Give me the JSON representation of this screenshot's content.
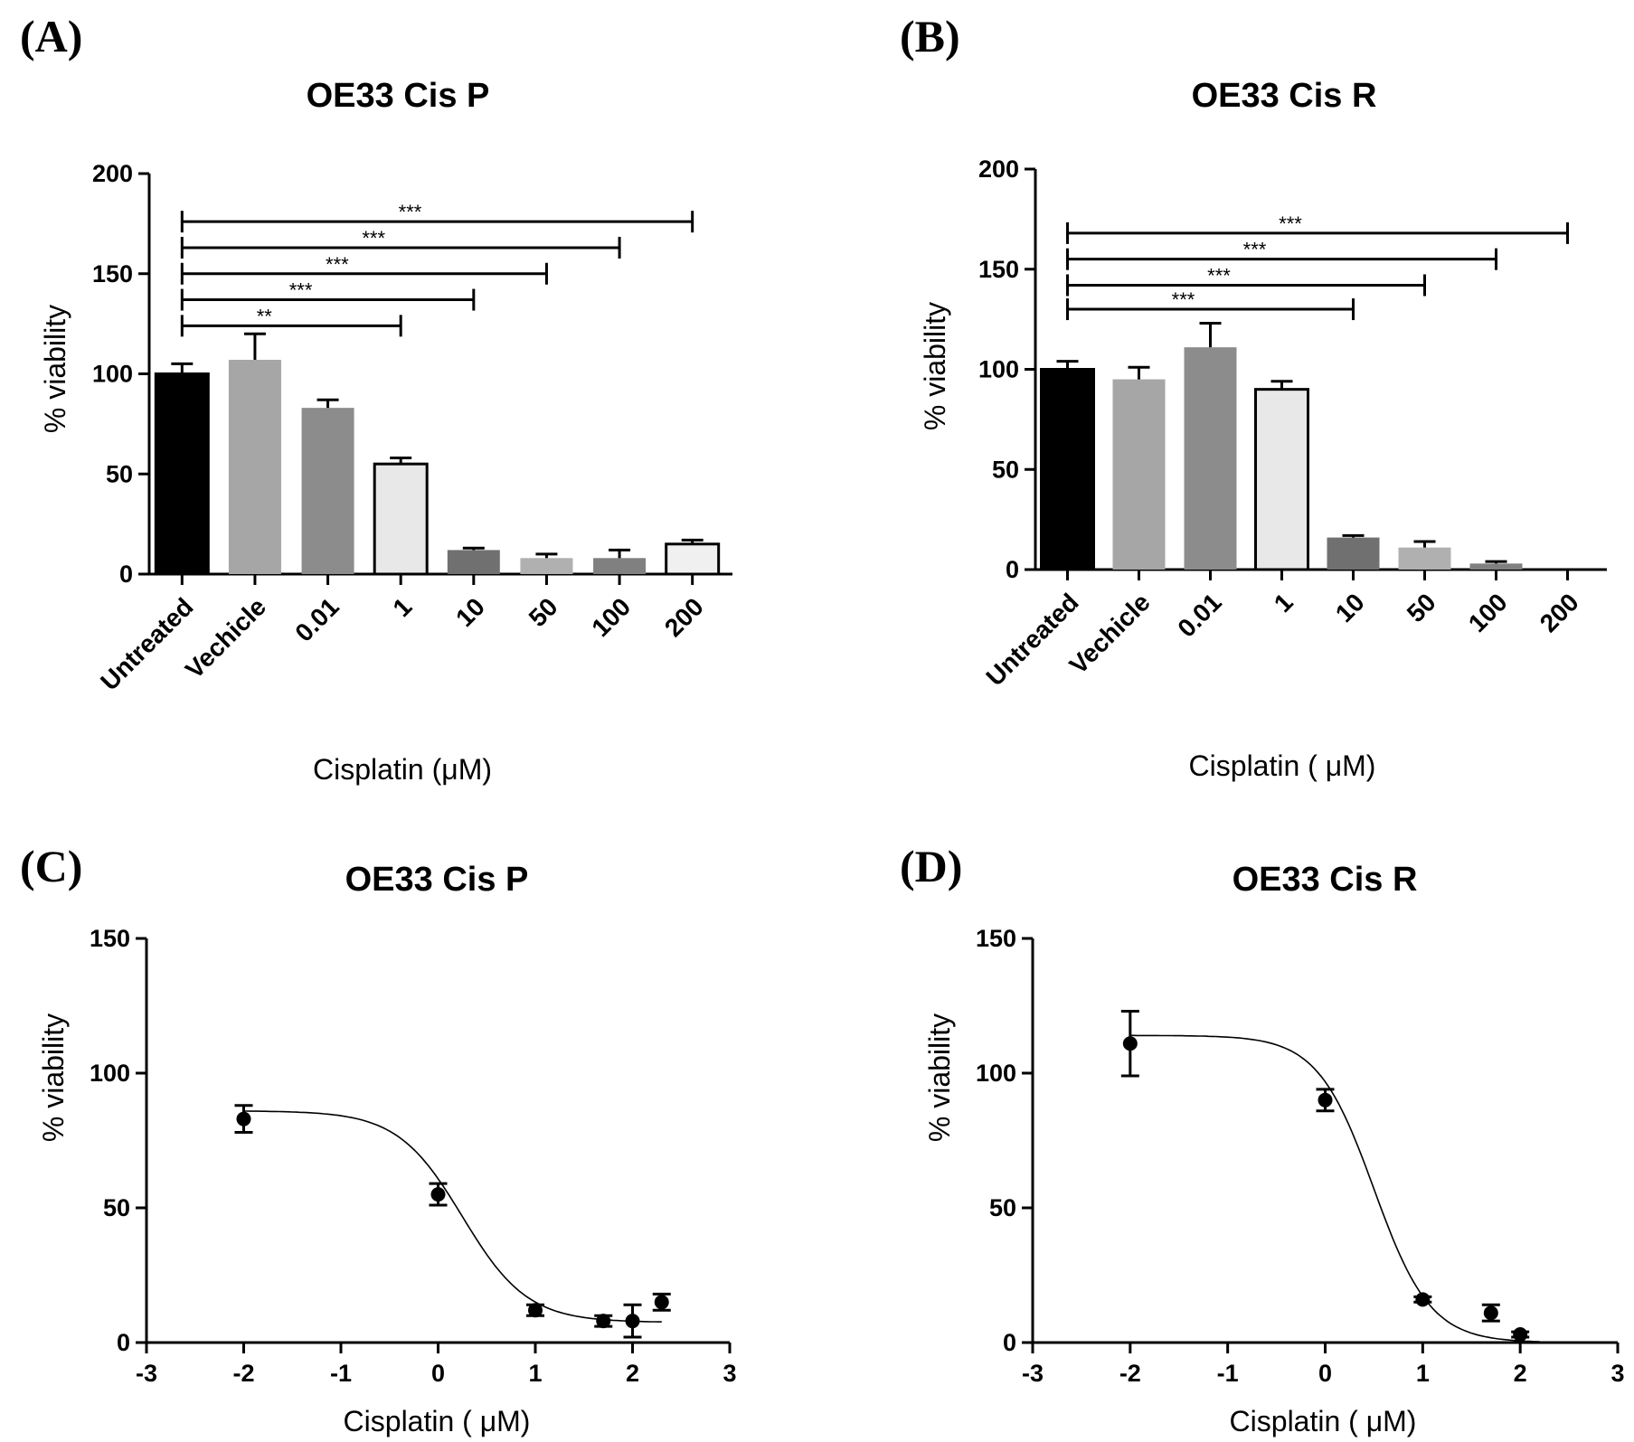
{
  "chart_data": [
    {
      "panel": "(A)",
      "type": "bar",
      "title": "OE33 Cis P",
      "xlabel": "Cisplatin (μM)",
      "ylabel": "% viability",
      "ylim": [
        0,
        200
      ],
      "yticks": [
        0,
        50,
        100,
        150,
        200
      ],
      "categories": [
        "Untreated",
        "Vechicle",
        "0.01",
        "1",
        "10",
        "50",
        "100",
        "200"
      ],
      "values": [
        100,
        107,
        83,
        55,
        12,
        8,
        8,
        15
      ],
      "errors": [
        5,
        13,
        4,
        3,
        1,
        2,
        4,
        2
      ],
      "bar_colors": [
        "#000000",
        "#a6a6a6",
        "#8c8c8c",
        "#e8e8e8",
        "#707070",
        "#b0b0b0",
        "#808080",
        "#f0f0f0"
      ],
      "significance": [
        {
          "from": "Untreated",
          "to": "1",
          "label": "**",
          "y": 124
        },
        {
          "from": "Untreated",
          "to": "10",
          "label": "***",
          "y": 137
        },
        {
          "from": "Untreated",
          "to": "50",
          "label": "***",
          "y": 150
        },
        {
          "from": "Untreated",
          "to": "100",
          "label": "***",
          "y": 163
        },
        {
          "from": "Untreated",
          "to": "200",
          "label": "***",
          "y": 176
        }
      ]
    },
    {
      "panel": "(B)",
      "type": "bar",
      "title": "OE33 Cis R",
      "xlabel": "Cisplatin ( μM)",
      "ylabel": "% viability",
      "ylim": [
        0,
        200
      ],
      "yticks": [
        0,
        50,
        100,
        150,
        200
      ],
      "categories": [
        "Untreated",
        "Vechicle",
        "0.01",
        "1",
        "10",
        "50",
        "100",
        "200"
      ],
      "values": [
        100,
        95,
        111,
        90,
        16,
        11,
        3,
        0
      ],
      "errors": [
        4,
        6,
        12,
        4,
        1,
        3,
        1,
        0
      ],
      "bar_colors": [
        "#000000",
        "#a6a6a6",
        "#8c8c8c",
        "#e8e8e8",
        "#707070",
        "#b0b0b0",
        "#808080",
        "#f0f0f0"
      ],
      "significance": [
        {
          "from": "Untreated",
          "to": "10",
          "label": "***",
          "y": 130
        },
        {
          "from": "Untreated",
          "to": "50",
          "label": "***",
          "y": 142
        },
        {
          "from": "Untreated",
          "to": "100",
          "label": "***",
          "y": 155
        },
        {
          "from": "Untreated",
          "to": "200",
          "label": "***",
          "y": 168
        }
      ]
    },
    {
      "panel": "(C)",
      "type": "scatter",
      "title": "OE33 Cis P",
      "xlabel": "Cisplatin ( μM)",
      "ylabel": "% viability",
      "xlim": [
        -3,
        3
      ],
      "ylim": [
        0,
        150
      ],
      "xticks": [
        -3,
        -2,
        -1,
        0,
        1,
        2,
        3
      ],
      "yticks": [
        0,
        50,
        100,
        150
      ],
      "x": [
        -2,
        0,
        1,
        1.7,
        2,
        2.3
      ],
      "y": [
        83,
        55,
        12,
        8,
        8,
        15
      ],
      "errors": [
        5,
        4,
        2,
        2,
        6,
        3
      ],
      "fit": {
        "bottom": 7.5,
        "top": 86,
        "logIC50": 0.25,
        "hill": -1.3,
        "xrange": [
          -2,
          2.3
        ]
      }
    },
    {
      "panel": "(D)",
      "type": "scatter",
      "title": "OE33 Cis R",
      "xlabel": "Cisplatin ( μM)",
      "ylabel": "% viability",
      "xlim": [
        -3,
        3
      ],
      "ylim": [
        0,
        150
      ],
      "xticks": [
        -3,
        -2,
        -1,
        0,
        1,
        2,
        3
      ],
      "yticks": [
        0,
        50,
        100,
        150
      ],
      "x": [
        -2,
        0,
        1,
        1.7,
        2
      ],
      "y": [
        111,
        90,
        16,
        11,
        3
      ],
      "errors": [
        12,
        4,
        1,
        3,
        1
      ],
      "fit": {
        "bottom": 0,
        "top": 114,
        "logIC50": 0.5,
        "hill": -1.5,
        "xrange": [
          -2,
          2.2
        ]
      }
    }
  ]
}
